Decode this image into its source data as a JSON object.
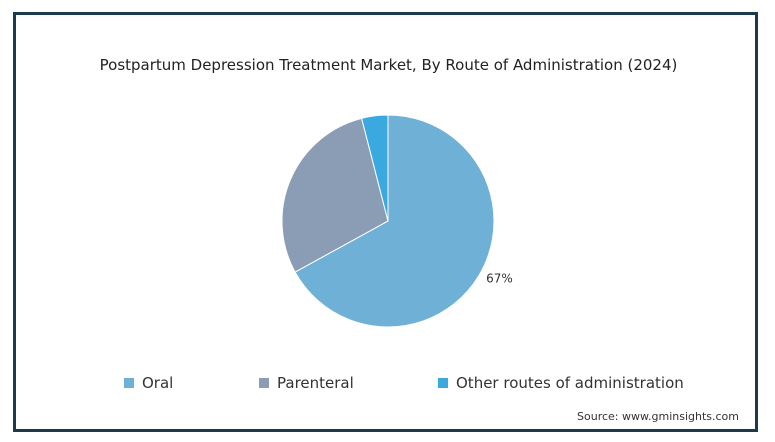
{
  "chart_data": {
    "type": "pie",
    "title": "Postpartum Depression Treatment Market, By Route of Administration (2024)",
    "categories": [
      "Oral",
      "Parenteral",
      "Other routes of administration"
    ],
    "values": [
      67,
      29,
      4
    ],
    "colors": [
      "#6fb0d6",
      "#8b9db5",
      "#3aa9e0"
    ],
    "data_labels": [
      "67%",
      "",
      ""
    ],
    "legend_position": "bottom"
  },
  "source": "Source: www.gminsights.com"
}
